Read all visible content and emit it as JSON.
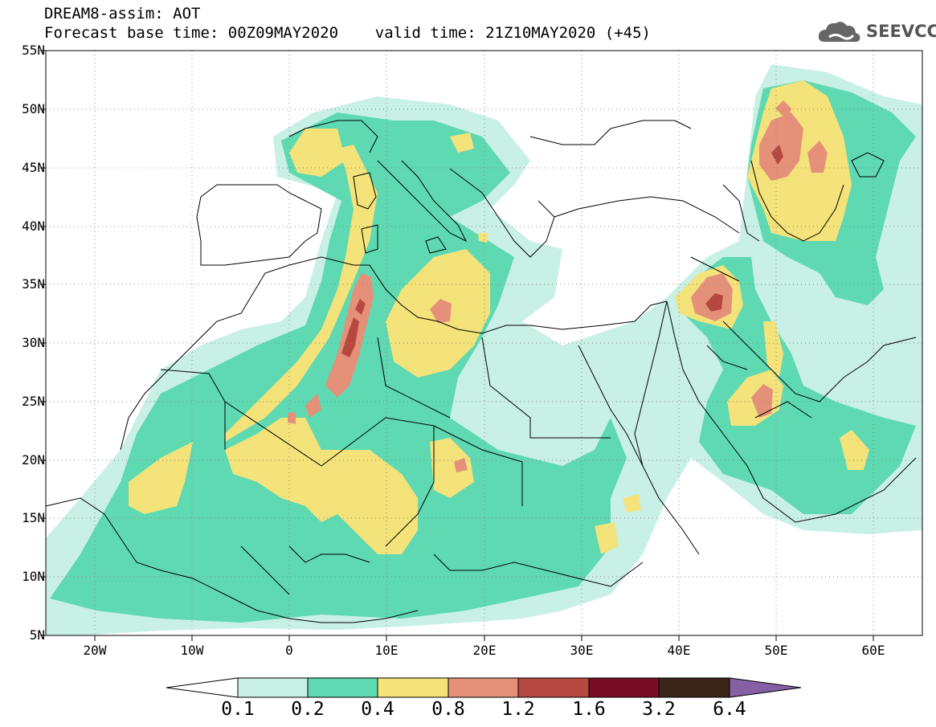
{
  "header": {
    "title_line1": "DREAM8-assim: AOT",
    "title_line2": "Forecast base time: 00Z09MAY2020    valid time: 21Z10MAY2020 (+45)"
  },
  "logo": {
    "text": "SEEVCCC",
    "icon": "cloud-icon"
  },
  "map": {
    "lat_labels": [
      "55N",
      "50N",
      "45N",
      "40N",
      "35N",
      "30N",
      "25N",
      "20N",
      "15N",
      "10N",
      "5N"
    ],
    "lon_labels": [
      "20W",
      "10W",
      "0",
      "10E",
      "20E",
      "30E",
      "40E",
      "50E",
      "60E"
    ],
    "lon_range": [
      -25,
      65
    ],
    "lat_range": [
      5,
      55
    ]
  },
  "colorbar": {
    "labels": [
      "0.1",
      "0.2",
      "0.4",
      "0.8",
      "1.2",
      "1.6",
      "3.2",
      "6.4"
    ],
    "colors": [
      "#ffffff",
      "#c8f0e6",
      "#5fd9b1",
      "#f4e27a",
      "#e5917a",
      "#b5493f",
      "#780d26",
      "#3a2418",
      "#8660a4"
    ]
  },
  "colors": {
    "c1": "#c8f0e6",
    "c2": "#5fd9b1",
    "c3": "#f4e27a",
    "c4": "#e5917a",
    "c5": "#b5493f"
  }
}
